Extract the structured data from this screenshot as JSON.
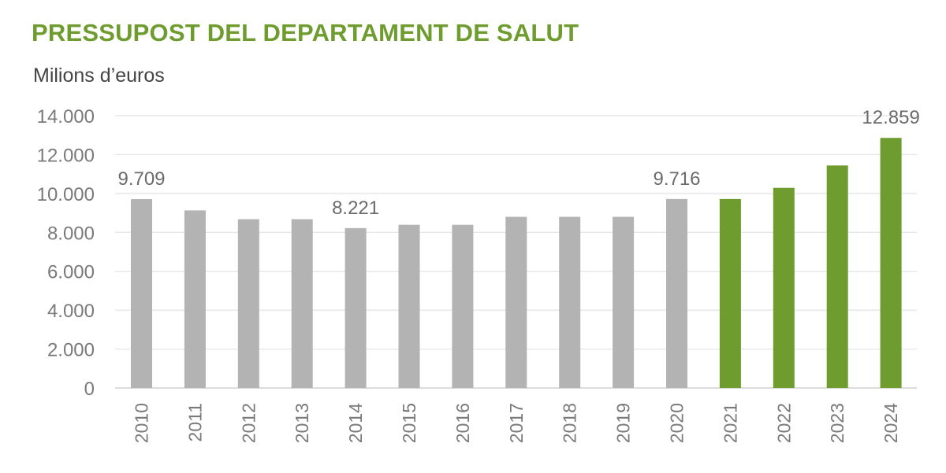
{
  "title": "PRESSUPOST DEL DEPARTAMENT DE SALUT",
  "subtitle": "Milions d’euros",
  "chart_data": {
    "type": "bar",
    "title": "PRESSUPOST DEL DEPARTAMENT DE SALUT",
    "ylabel": "Milions d’euros",
    "xlabel": "",
    "categories": [
      "2010",
      "2011",
      "2012",
      "2013",
      "2014",
      "2015",
      "2016",
      "2017",
      "2018",
      "2019",
      "2020",
      "2021",
      "2022",
      "2023",
      "2024"
    ],
    "values": [
      9709,
      9130,
      8680,
      8680,
      8221,
      8390,
      8390,
      8800,
      8800,
      8800,
      9716,
      9716,
      10290,
      11440,
      12859
    ],
    "bar_colors": [
      "#b3b3b3",
      "#b3b3b3",
      "#b3b3b3",
      "#b3b3b3",
      "#b3b3b3",
      "#b3b3b3",
      "#b3b3b3",
      "#b3b3b3",
      "#b3b3b3",
      "#b3b3b3",
      "#b3b3b3",
      "#6e9c2e",
      "#6e9c2e",
      "#6e9c2e",
      "#6e9c2e"
    ],
    "ylim": [
      0,
      14000
    ],
    "yticks": [
      {
        "value": 0,
        "label": "0"
      },
      {
        "value": 2000,
        "label": "2.000"
      },
      {
        "value": 4000,
        "label": "4.000"
      },
      {
        "value": 6000,
        "label": "6.000"
      },
      {
        "value": 8000,
        "label": "8.000"
      },
      {
        "value": 10000,
        "label": "10.000"
      },
      {
        "value": 12000,
        "label": "12.000"
      },
      {
        "value": 14000,
        "label": "14.000"
      }
    ],
    "data_labels": [
      {
        "index": 0,
        "label": "9.709"
      },
      {
        "index": 4,
        "label": "8.221"
      },
      {
        "index": 10,
        "label": "9.716"
      },
      {
        "index": 14,
        "label": "12.859"
      }
    ],
    "grid": true,
    "legend": "none"
  }
}
